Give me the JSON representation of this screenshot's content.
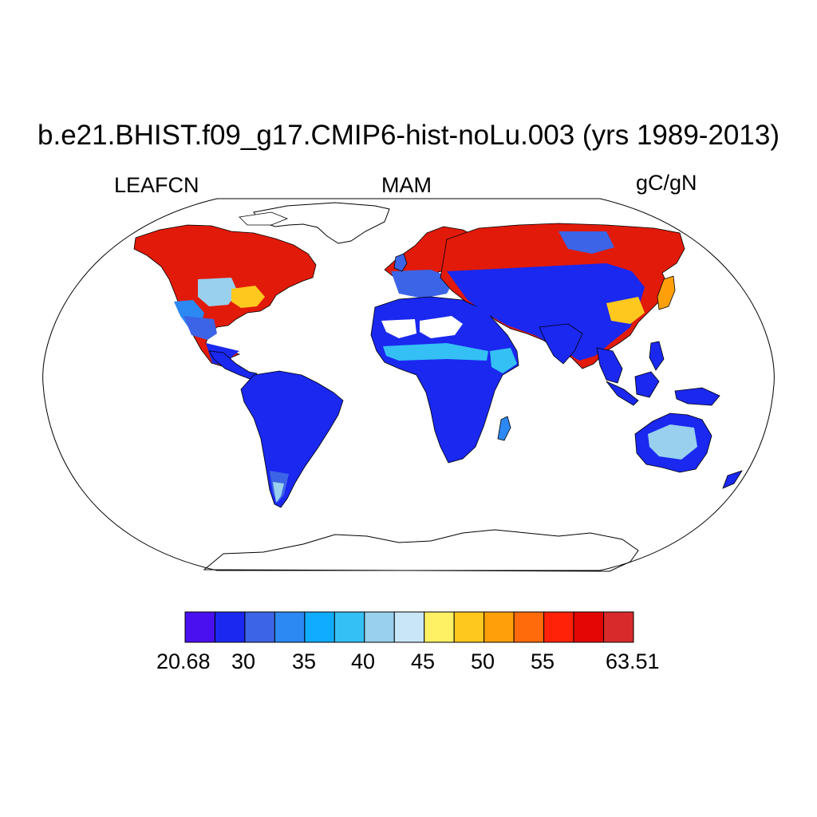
{
  "title": "b.e21.BHIST.f09_g17.CMIP6-hist-noLu.003 (yrs 1989-2013)",
  "left_label": "LEAFCN",
  "center_label": "MAM",
  "right_label": "gC/gN",
  "colorbar": {
    "colors": [
      "#4a10f0",
      "#1a28f0",
      "#3c64e6",
      "#2c88f2",
      "#10acff",
      "#34c0f4",
      "#98d0ee",
      "#c8e6f8",
      "#fff064",
      "#ffc81e",
      "#ffa00a",
      "#ff6a0a",
      "#ff2208",
      "#e40505",
      "#d82a2a"
    ],
    "labels": [
      "20.68",
      "30",
      "35",
      "40",
      "45",
      "50",
      "55",
      "63.51"
    ]
  },
  "map": {
    "projection": "Robinson",
    "central_longitude": 0,
    "no_data_color": "#ffffff"
  }
}
